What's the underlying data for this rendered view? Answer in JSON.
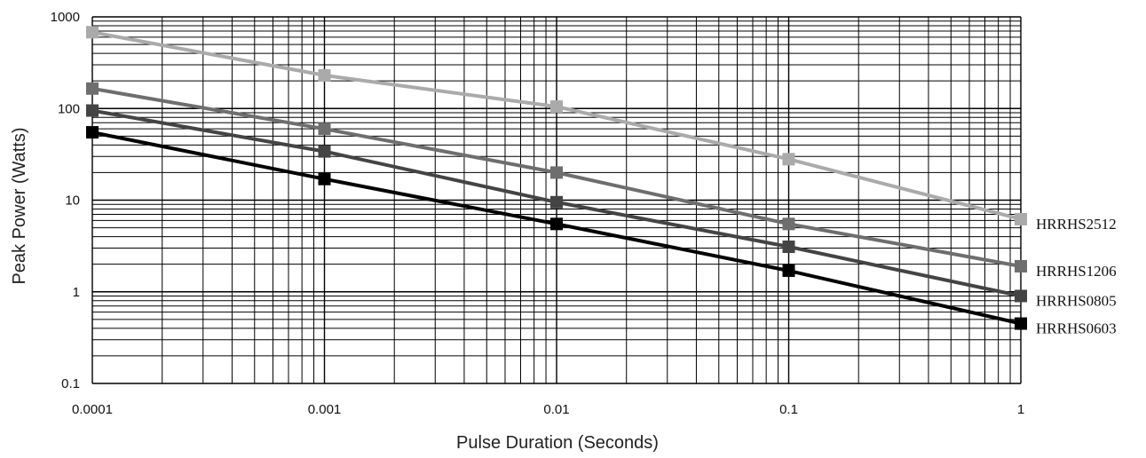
{
  "chart_data": {
    "type": "line",
    "title": "",
    "xlabel": "Pulse Duration (Seconds)",
    "ylabel": "Peak Power (Watts)",
    "x_scale": "log",
    "y_scale": "log",
    "xlim": [
      0.0001,
      1
    ],
    "ylim": [
      0.1,
      1000
    ],
    "grid": true,
    "x_ticks": [
      "0.0001",
      "0.001",
      "0.01",
      "0.1",
      "1"
    ],
    "y_ticks": [
      "0.1",
      "1",
      "10",
      "100",
      "1000"
    ],
    "x": [
      0.0001,
      0.001,
      0.01,
      0.1,
      1
    ],
    "legend_placement": "right-end-of-lines",
    "series": [
      {
        "name": "HRRHS2512",
        "color": "#aaaaaa",
        "values": [
          680,
          230,
          105,
          28,
          6.2
        ]
      },
      {
        "name": "HRRHS1206",
        "color": "#6e6e6e",
        "values": [
          165,
          60,
          20,
          5.5,
          1.9
        ]
      },
      {
        "name": "HRRHS0805",
        "color": "#444444",
        "values": [
          95,
          34,
          9.5,
          3.1,
          0.9
        ]
      },
      {
        "name": "HRRHS0603",
        "color": "#000000",
        "values": [
          55,
          17,
          5.5,
          1.7,
          0.45
        ]
      }
    ]
  }
}
